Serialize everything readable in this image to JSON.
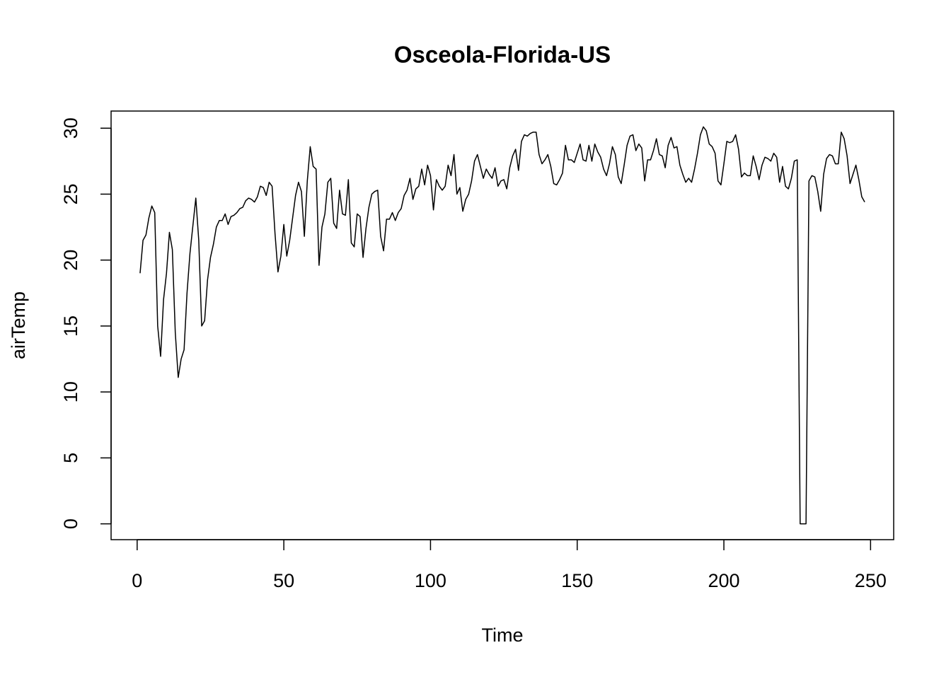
{
  "chart_data": {
    "type": "line",
    "title": "Osceola-Florida-US",
    "x_label": "Time",
    "y_label": "airTemp",
    "color": "#000000",
    "x": [
      1,
      2,
      3,
      4,
      5,
      6,
      7,
      8,
      9,
      10,
      11,
      12,
      13,
      14,
      15,
      16,
      17,
      18,
      19,
      20,
      21,
      22,
      23,
      24,
      25,
      26,
      27,
      28,
      29,
      30,
      31,
      32,
      33,
      34,
      35,
      36,
      37,
      38,
      39,
      40,
      41,
      42,
      43,
      44,
      45,
      46,
      47,
      48,
      49,
      50,
      51,
      52,
      53,
      54,
      55,
      56,
      57,
      58,
      59,
      60,
      61,
      62,
      63,
      64,
      65,
      66,
      67,
      68,
      69,
      70,
      71,
      72,
      73,
      74,
      75,
      76,
      77,
      78,
      79,
      80,
      81,
      82,
      83,
      84,
      85,
      86,
      87,
      88,
      89,
      90,
      91,
      92,
      93,
      94,
      95,
      96,
      97,
      98,
      99,
      100,
      101,
      102,
      103,
      104,
      105,
      106,
      107,
      108,
      109,
      110,
      111,
      112,
      113,
      114,
      115,
      116,
      117,
      118,
      119,
      120,
      121,
      122,
      123,
      124,
      125,
      126,
      127,
      128,
      129,
      130,
      131,
      132,
      133,
      134,
      135,
      136,
      137,
      138,
      139,
      140,
      141,
      142,
      143,
      144,
      145,
      146,
      147,
      148,
      149,
      150,
      151,
      152,
      153,
      154,
      155,
      156,
      157,
      158,
      159,
      160,
      161,
      162,
      163,
      164,
      165,
      166,
      167,
      168,
      169,
      170,
      171,
      172,
      173,
      174,
      175,
      176,
      177,
      178,
      179,
      180,
      181,
      182,
      183,
      184,
      185,
      186,
      187,
      188,
      189,
      190,
      191,
      192,
      193,
      194,
      195,
      196,
      197,
      198,
      199,
      200,
      201,
      202,
      203,
      204,
      205,
      206,
      207,
      208,
      209,
      210,
      211,
      212,
      213,
      214,
      215,
      216,
      217,
      218,
      219,
      220,
      221,
      222,
      223,
      224,
      225,
      226,
      227,
      228,
      229,
      230,
      231,
      232,
      233,
      234,
      235,
      236,
      237,
      238,
      239,
      240,
      241,
      242,
      243,
      244,
      245,
      246,
      247,
      248
    ],
    "values": [
      19,
      21.5,
      21.9,
      23.2,
      24.1,
      23.6,
      15,
      12.7,
      17,
      19,
      22.1,
      20.8,
      14.5,
      11.1,
      12.5,
      13.2,
      17.5,
      20.5,
      22.6,
      24.7,
      21.5,
      15,
      15.4,
      18.5,
      20.2,
      21.2,
      22.5,
      23,
      23,
      23.5,
      22.7,
      23.3,
      23.4,
      23.6,
      23.9,
      24,
      24.5,
      24.7,
      24.6,
      24.4,
      24.8,
      25.6,
      25.5,
      24.9,
      25.9,
      25.6,
      22,
      19.1,
      20.3,
      22.7,
      20.3,
      21.5,
      23.2,
      24.9,
      25.9,
      25.2,
      21.8,
      26,
      28.6,
      27.1,
      26.9,
      19.6,
      22.5,
      23.5,
      25.9,
      26.2,
      22.8,
      22.4,
      25.3,
      23.5,
      23.4,
      26.1,
      21.3,
      21,
      23.5,
      23.3,
      20.2,
      22.4,
      24,
      25,
      25.2,
      25.3,
      21.8,
      20.7,
      23.1,
      23.1,
      23.6,
      23,
      23.6,
      23.9,
      24.9,
      25.3,
      26.2,
      24.6,
      25.4,
      25.6,
      26.9,
      25.7,
      27.2,
      26.4,
      23.8,
      26.1,
      25.6,
      25.3,
      25.6,
      27.2,
      26.4,
      28,
      25,
      25.5,
      23.7,
      24.6,
      25,
      26,
      27.5,
      28,
      27.1,
      26.2,
      26.9,
      26.5,
      26.2,
      27,
      25.6,
      26,
      26.1,
      25.4,
      27,
      27.9,
      28.4,
      26.8,
      29,
      29.5,
      29.4,
      29.6,
      29.7,
      29.7,
      28,
      27.3,
      27.6,
      28,
      27.1,
      25.8,
      25.7,
      26.1,
      26.6,
      28.7,
      27.6,
      27.6,
      27.4,
      28.1,
      28.8,
      27.6,
      27.5,
      28.7,
      27.5,
      28.8,
      28.2,
      27.8,
      26.9,
      26.4,
      27.3,
      28.6,
      28,
      26.3,
      25.8,
      27.2,
      28.7,
      29.4,
      29.5,
      28.3,
      28.8,
      28.5,
      26,
      27.6,
      27.6,
      28.3,
      29.2,
      28,
      27.9,
      27,
      28.7,
      29.3,
      28.5,
      28.6,
      27.2,
      26.5,
      25.9,
      26.2,
      25.9,
      26.9,
      28.1,
      29.5,
      30.1,
      29.8,
      28.8,
      28.6,
      28.1,
      26,
      25.7,
      27.3,
      29,
      28.9,
      29,
      29.5,
      28.4,
      26.3,
      26.6,
      26.4,
      26.4,
      27.9,
      27.1,
      26.1,
      27.2,
      27.8,
      27.7,
      27.5,
      28.1,
      27.8,
      25.9,
      27.1,
      25.6,
      25.4,
      26.2,
      27.5,
      27.6,
      0,
      0,
      0,
      26,
      26.4,
      26.3,
      25.2,
      23.7,
      26.5,
      27.7,
      28,
      27.9,
      27.3,
      27.3,
      29.7,
      29.2,
      27.9,
      25.8,
      26.5,
      27.2,
      26.1,
      24.8,
      24.4
    ],
    "xlim": [
      -8.88,
      257.88
    ],
    "ylim": [
      -1.2,
      31.3
    ],
    "xticks": [
      0,
      50,
      100,
      150,
      200,
      250
    ],
    "yticks": [
      0,
      5,
      10,
      15,
      20,
      25,
      30
    ]
  }
}
